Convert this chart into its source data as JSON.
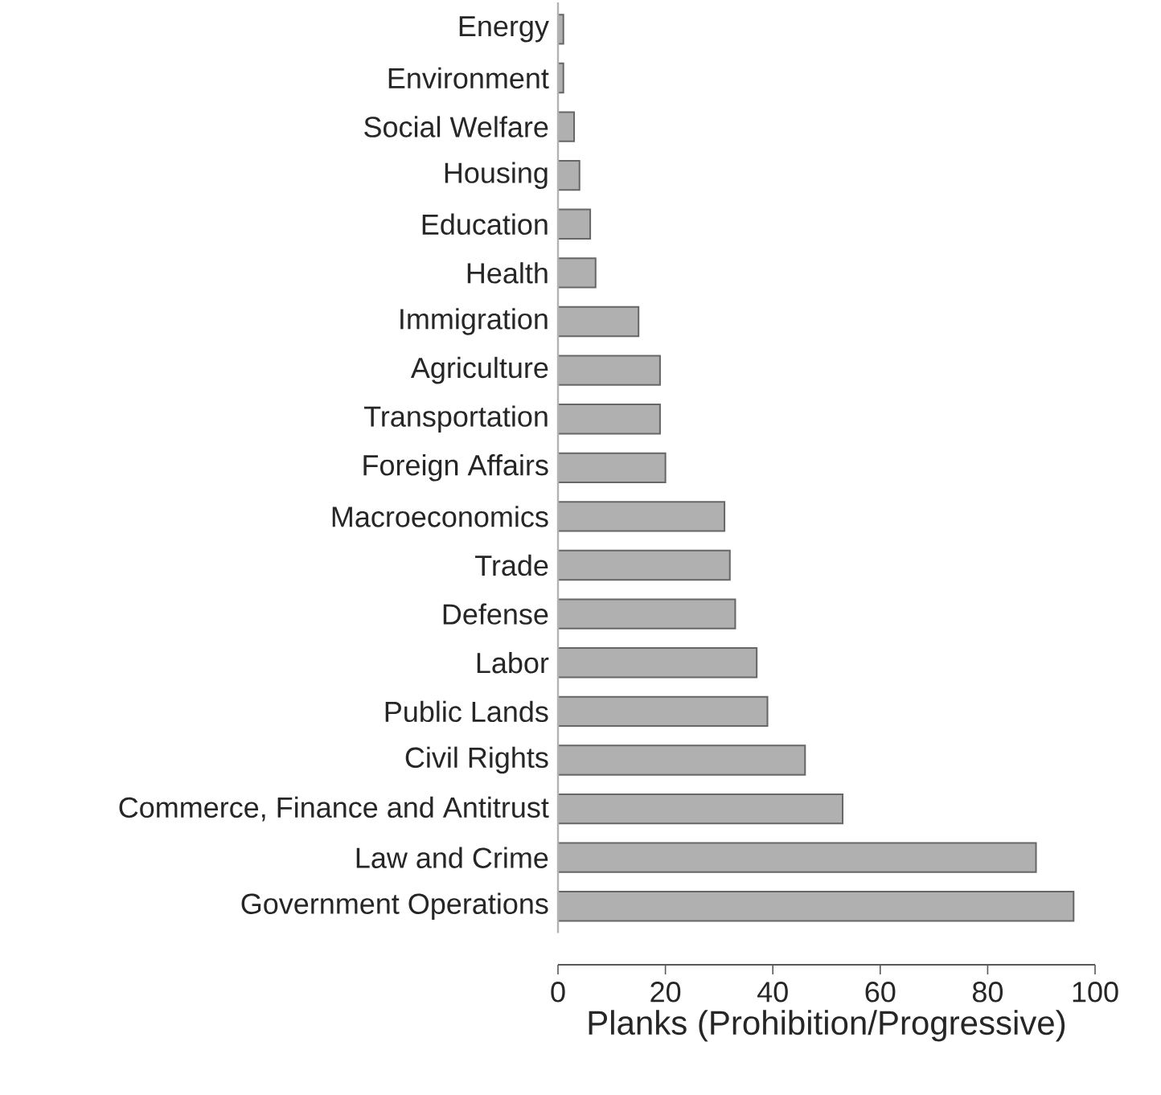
{
  "chart_data": {
    "type": "bar",
    "orientation": "horizontal",
    "xlabel": "Planks (Prohibition/Progressive)",
    "categories": [
      "Energy",
      "Environment",
      "Social Welfare",
      "Housing",
      "Education",
      "Health",
      "Immigration",
      "Agriculture",
      "Transportation",
      "Foreign Affairs",
      "Macroeconomics",
      "Trade",
      "Defense",
      "Labor",
      "Public Lands",
      "Civil Rights",
      "Commerce, Finance and Antitrust",
      "Law and Crime",
      "Government Operations"
    ],
    "values": [
      1,
      1,
      3,
      4,
      6,
      7,
      15,
      19,
      19,
      20,
      31,
      32,
      33,
      37,
      39,
      46,
      53,
      89,
      96
    ],
    "color": "#b0b0b0",
    "xlim": [
      0,
      100
    ],
    "xticks": [
      0,
      20,
      40,
      60,
      80,
      100
    ]
  }
}
